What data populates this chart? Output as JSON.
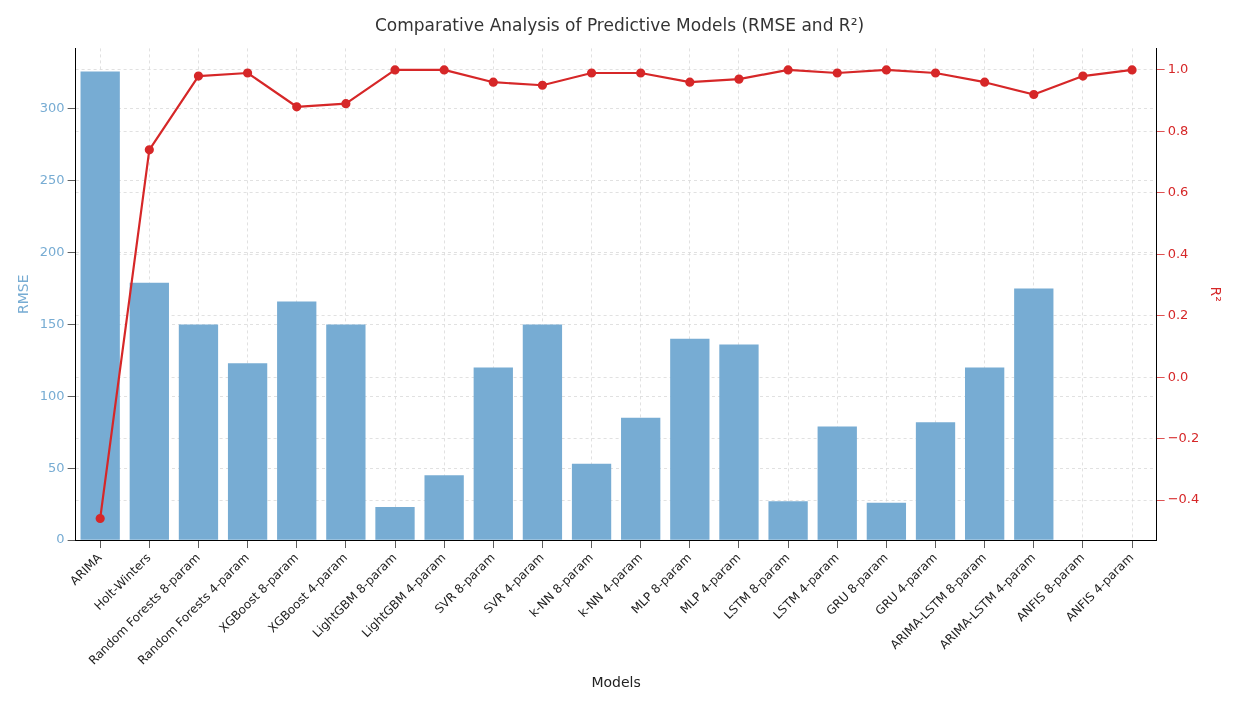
{
  "chart_data": {
    "type": "bar",
    "title": "Comparative Analysis of Predictive Models (RMSE and R²)",
    "xlabel": "Models",
    "ylabel": "RMSE",
    "y2label": "R²",
    "categories": [
      "ARIMA",
      "Holt-Winters",
      "Random Forests 8-param",
      "Random Forests 4-param",
      "XGBoost 8-param",
      "XGBoost 4-param",
      "LightGBM 8-param",
      "LightGBM 4-param",
      "SVR 8-param",
      "SVR 4-param",
      "k-NN 8-param",
      "k-NN 4-param",
      "MLP 8-param",
      "MLP 4-param",
      "LSTM 8-param",
      "LSTM 4-param",
      "GRU 8-param",
      "GRU 4-param",
      "ARIMA-LSTM 8-param",
      "ARIMA-LSTM 4-param",
      "ANFIS 8-param",
      "ANFIS 4-param"
    ],
    "series": [
      {
        "color": "#77acd3",
        "values": [
          326,
          179,
          150,
          123,
          166,
          150,
          23,
          45,
          120,
          150,
          53,
          85,
          140,
          136,
          27,
          79,
          26,
          82,
          120,
          175,
          null,
          null
        ]
      },
      {
        "type": "line",
        "axis": "y2",
        "color": "#d62728",
        "marker": "circle",
        "line_style": "solid",
        "values": [
          -0.46,
          0.74,
          0.98,
          0.99,
          0.88,
          0.89,
          1.0,
          1.0,
          0.96,
          0.95,
          0.99,
          0.99,
          0.96,
          0.97,
          1.0,
          0.99,
          1.0,
          0.99,
          0.96,
          0.92,
          0.98,
          1.0
        ]
      }
    ],
    "ylim": [
      0,
      342
    ],
    "yticks": [
      0,
      50,
      100,
      150,
      200,
      250,
      300
    ],
    "y2lim": [
      -0.53,
      1.07
    ],
    "y2ticks": [
      {
        "value": -0.4,
        "label": "−0.4"
      },
      {
        "value": -0.2,
        "label": "−0.2"
      },
      {
        "value": 0,
        "label": "0.0"
      },
      {
        "value": 0.2,
        "label": "0.2"
      },
      {
        "value": 0.4,
        "label": "0.4"
      },
      {
        "value": 0.6,
        "label": "0.6"
      },
      {
        "value": 0.8,
        "label": "0.8"
      },
      {
        "value": 1.0,
        "label": "1.0"
      }
    ],
    "grid": true,
    "legend": false
  }
}
